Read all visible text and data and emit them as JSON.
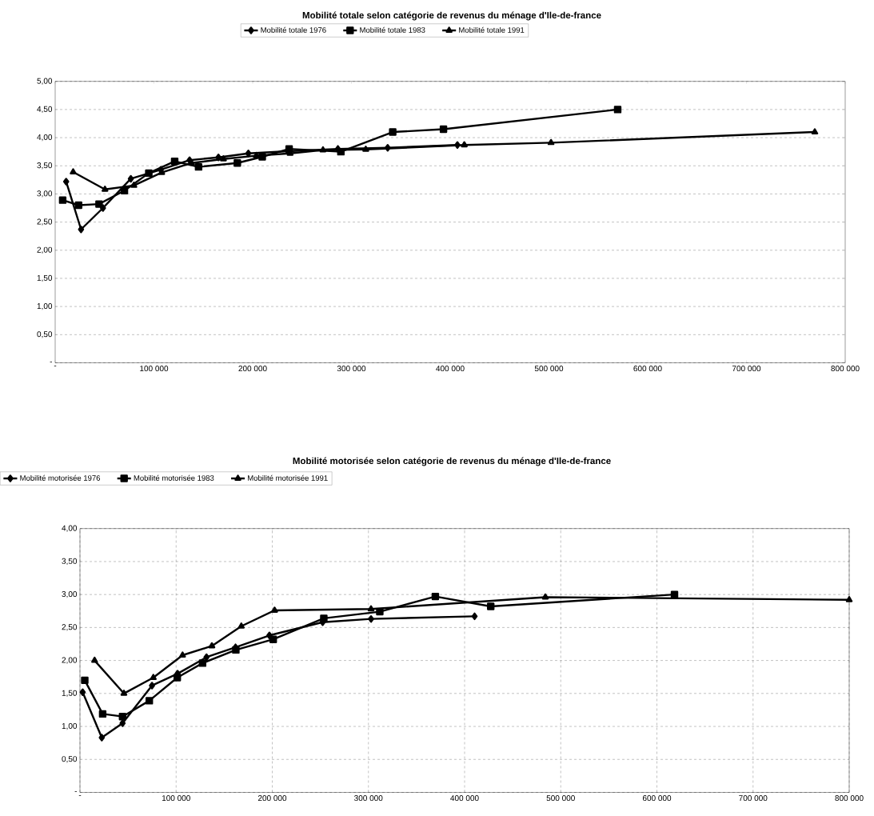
{
  "chart_data": [
    {
      "type": "line",
      "title": "Mobilité totale selon catégorie de revenus du ménage d'Ile-de-france",
      "legend": "top",
      "grid": "y",
      "line_style": "solid",
      "xlim": [
        0,
        800000
      ],
      "ylim": [
        0,
        5
      ],
      "xticks": [
        {
          "value": 0,
          "label": "-"
        },
        {
          "value": 100000,
          "label": "100 000"
        },
        {
          "value": 200000,
          "label": "200 000"
        },
        {
          "value": 300000,
          "label": "300 000"
        },
        {
          "value": 400000,
          "label": "400 000"
        },
        {
          "value": 500000,
          "label": "500 000"
        },
        {
          "value": 600000,
          "label": "600 000"
        },
        {
          "value": 700000,
          "label": "700 000"
        },
        {
          "value": 800000,
          "label": "800 000"
        }
      ],
      "yticks": [
        {
          "value": 0,
          "label": "-"
        },
        {
          "value": 0.5,
          "label": "0,50"
        },
        {
          "value": 1,
          "label": "1,00"
        },
        {
          "value": 1.5,
          "label": "1,50"
        },
        {
          "value": 2,
          "label": "2,00"
        },
        {
          "value": 2.5,
          "label": "2,50"
        },
        {
          "value": 3,
          "label": "3,00"
        },
        {
          "value": 3.5,
          "label": "3,50"
        },
        {
          "value": 4,
          "label": "4,00"
        },
        {
          "value": 4.5,
          "label": "4,50"
        },
        {
          "value": 5,
          "label": "5,00"
        }
      ],
      "series": [
        {
          "name": "Mobilité totale 1976",
          "color": "#000000",
          "marker": "diamond",
          "x": [
            11100,
            26200,
            48400,
            76600,
            106900,
            136100,
            165300,
            195600,
            235900,
            286300,
            336700,
            407300
          ],
          "values": [
            3.22,
            2.37,
            2.75,
            3.27,
            3.43,
            3.6,
            3.65,
            3.72,
            3.76,
            3.8,
            3.82,
            3.87
          ]
        },
        {
          "name": "Mobilité totale 1983",
          "color": "#000000",
          "marker": "square",
          "x": [
            7600,
            23700,
            44400,
            70100,
            94800,
            121000,
            145200,
            184500,
            209700,
            236900,
            289300,
            341800,
            393200,
            569600
          ],
          "values": [
            2.89,
            2.8,
            2.82,
            3.06,
            3.37,
            3.58,
            3.48,
            3.55,
            3.66,
            3.8,
            3.75,
            4.1,
            4.15,
            4.5
          ]
        },
        {
          "name": "Mobilité totale 1991",
          "color": "#000000",
          "marker": "triangle",
          "x": [
            18200,
            50400,
            79700,
            107900,
            138100,
            170400,
            203700,
            237900,
            271200,
            314500,
            414300,
            502100,
            769200
          ],
          "values": [
            3.39,
            3.08,
            3.15,
            3.38,
            3.55,
            3.62,
            3.68,
            3.72,
            3.78,
            3.79,
            3.87,
            3.91,
            4.1
          ]
        }
      ]
    },
    {
      "type": "line",
      "title": "Mobilité motorisée selon catégorie de revenus du ménage d'Ile-de-france",
      "legend": "top",
      "grid": true,
      "line_style": "solid",
      "xlim": [
        0,
        800000
      ],
      "ylim": [
        0,
        4
      ],
      "xticks": [
        {
          "value": 0,
          "label": "-"
        },
        {
          "value": 100000,
          "label": "100 000"
        },
        {
          "value": 200000,
          "label": "200 000"
        },
        {
          "value": 300000,
          "label": "300 000"
        },
        {
          "value": 400000,
          "label": "400 000"
        },
        {
          "value": 500000,
          "label": "500 000"
        },
        {
          "value": 600000,
          "label": "600 000"
        },
        {
          "value": 700000,
          "label": "700 000"
        },
        {
          "value": 800000,
          "label": "800 000"
        }
      ],
      "yticks": [
        {
          "value": 0,
          "label": "-"
        },
        {
          "value": 0.5,
          "label": "0,50"
        },
        {
          "value": 1,
          "label": "1,00"
        },
        {
          "value": 1.5,
          "label": "1,50"
        },
        {
          "value": 2,
          "label": "2,00"
        },
        {
          "value": 2.5,
          "label": "2,50"
        },
        {
          "value": 3,
          "label": "3,00"
        },
        {
          "value": 3.5,
          "label": "3,50"
        },
        {
          "value": 4,
          "label": "4,00"
        }
      ],
      "series": [
        {
          "name": "Mobilité motorisée 1976",
          "color": "#000000",
          "marker": "diamond",
          "x": [
            2800,
            22700,
            44300,
            74900,
            101500,
            131600,
            161800,
            197000,
            252400,
            302700,
            410400
          ],
          "values": [
            1.52,
            0.83,
            1.05,
            1.62,
            1.8,
            2.05,
            2.2,
            2.38,
            2.58,
            2.63,
            2.67
          ]
        },
        {
          "name": "Mobilité motorisée 1983",
          "color": "#000000",
          "marker": "square",
          "x": [
            5000,
            23600,
            44300,
            72100,
            101200,
            127500,
            162100,
            201000,
            253600,
            311800,
            369600,
            427200,
            618300
          ],
          "values": [
            1.7,
            1.19,
            1.15,
            1.39,
            1.74,
            1.96,
            2.16,
            2.32,
            2.64,
            2.74,
            2.97,
            2.82,
            3.0
          ]
        },
        {
          "name": "Mobilité motorisée 1991",
          "color": "#000000",
          "marker": "triangle",
          "x": [
            15200,
            45700,
            76300,
            106700,
            137200,
            167800,
            202400,
            302700,
            484000,
            800000
          ],
          "values": [
            2.0,
            1.5,
            1.74,
            2.08,
            2.22,
            2.52,
            2.76,
            2.78,
            2.96,
            2.92
          ]
        }
      ]
    }
  ]
}
